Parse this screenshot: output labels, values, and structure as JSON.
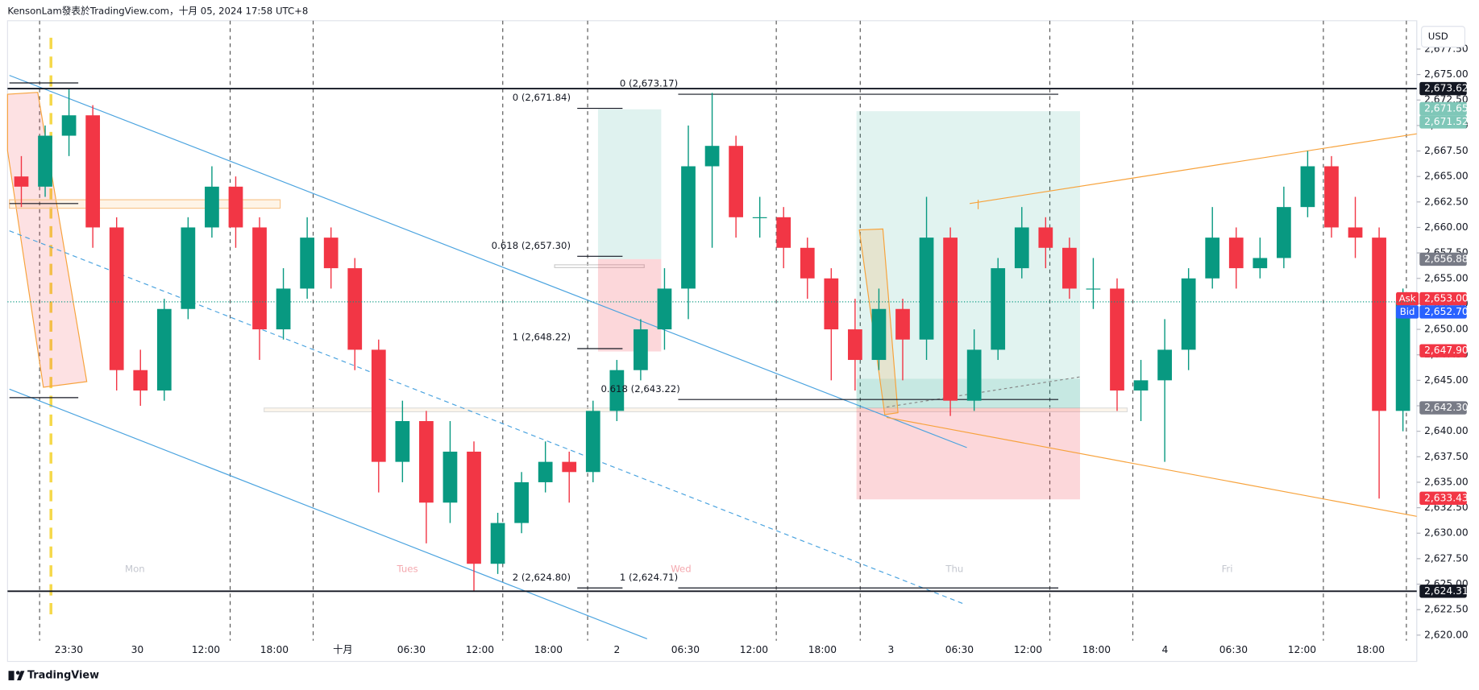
{
  "header": "KensonLam發表於TradingView.com，十月 05, 2024 17:58 UTC+8",
  "footer": "TradingView",
  "currency": "USD",
  "chart_data": {
    "type": "candlestick",
    "up_color": "#089981",
    "down_color": "#f23645",
    "open": [
      2665,
      2664,
      2669,
      2671,
      2660,
      2646,
      2644,
      2652,
      2660,
      2664,
      2660,
      2650,
      2654,
      2659,
      2656,
      2648,
      2637,
      2641,
      2633,
      2638,
      2627,
      2631,
      2635,
      2637,
      2636,
      2642,
      2646,
      2650,
      2654,
      2666,
      2668,
      2661,
      2661,
      2658,
      2655,
      2650,
      2647,
      2652,
      2649,
      2659,
      2643,
      2648,
      2656,
      2660,
      2658,
      2654,
      2654,
      2644,
      2645,
      2648,
      2655,
      2659,
      2656,
      2657,
      2662,
      2666,
      2660,
      2659,
      2642
    ],
    "high": [
      2667,
      2670,
      2673.6,
      2672,
      2661,
      2648,
      2653,
      2661,
      2666,
      2665,
      2661,
      2656,
      2661,
      2660,
      2657,
      2649,
      2643,
      2642,
      2641,
      2639,
      2632,
      2636,
      2639,
      2638,
      2643,
      2647,
      2651,
      2656,
      2670,
      2673.2,
      2669,
      2663,
      2662,
      2659,
      2656,
      2653,
      2654,
      2653,
      2663,
      2660,
      2650,
      2657,
      2662,
      2661,
      2659,
      2657,
      2655,
      2647,
      2651,
      2656,
      2662,
      2660,
      2659,
      2664,
      2667.5,
      2667,
      2663,
      2660,
      2654
    ],
    "low": [
      2662,
      2663,
      2667,
      2658,
      2644,
      2642.5,
      2643,
      2651,
      2659,
      2658,
      2647,
      2649,
      2653,
      2654,
      2646,
      2634,
      2635,
      2629,
      2631,
      2624.3,
      2626,
      2630,
      2634,
      2633,
      2635,
      2641,
      2645,
      2648,
      2651,
      2658,
      2659,
      2659,
      2656,
      2653,
      2645,
      2644,
      2646,
      2645,
      2647,
      2641.5,
      2642,
      2647,
      2655,
      2656,
      2653,
      2652,
      2642,
      2641,
      2637,
      2646,
      2654,
      2654,
      2655,
      2656,
      2661,
      2659,
      2657,
      2633.4,
      2640
    ],
    "close": [
      2664,
      2669,
      2671,
      2660,
      2646,
      2644,
      2652,
      2660,
      2664,
      2660,
      2650,
      2654,
      2659,
      2656,
      2648,
      2637,
      2641,
      2633,
      2638,
      2627,
      2631,
      2635,
      2637,
      2636,
      2642,
      2646,
      2650,
      2654,
      2666,
      2668,
      2661,
      2661,
      2658,
      2655,
      2650,
      2647,
      2652,
      2649,
      2659,
      2643,
      2648,
      2656,
      2660,
      2658,
      2654,
      2654,
      2644,
      2645,
      2648,
      2655,
      2659,
      2656,
      2657,
      2662,
      2666,
      2660,
      2659,
      2642,
      2652.7
    ],
    "ylim": [
      2619.45,
      2680.28
    ],
    "yticks": [
      {
        "value": 2620,
        "label": "2,620.00"
      },
      {
        "value": 2622.5,
        "label": "2,622.50"
      },
      {
        "value": 2625,
        "label": "2,625.00"
      },
      {
        "value": 2627.5,
        "label": "2,627.50"
      },
      {
        "value": 2630,
        "label": "2,630.00"
      },
      {
        "value": 2632.5,
        "label": "2,632.50"
      },
      {
        "value": 2635,
        "label": "2,635.00"
      },
      {
        "value": 2637.5,
        "label": "2,637.50"
      },
      {
        "value": 2640,
        "label": "2,640.00"
      },
      {
        "value": 2642.5,
        "label": "2,642.50"
      },
      {
        "value": 2645,
        "label": "2,645.00"
      },
      {
        "value": 2647.5,
        "label": "2,647.50"
      },
      {
        "value": 2650,
        "label": "2,650.00"
      },
      {
        "value": 2652.5,
        "label": "2,652.50"
      },
      {
        "value": 2655,
        "label": "2,655.00"
      },
      {
        "value": 2657.5,
        "label": "2,657.50"
      },
      {
        "value": 2660,
        "label": "2,660.00"
      },
      {
        "value": 2662.5,
        "label": "2,662.50"
      },
      {
        "value": 2665,
        "label": "2,665.00"
      },
      {
        "value": 2667.5,
        "label": "2,667.50"
      },
      {
        "value": 2670,
        "label": "2,670.00"
      },
      {
        "value": 2672.5,
        "label": "2,672.50"
      },
      {
        "value": 2675,
        "label": "2,675.00"
      },
      {
        "value": 2677.5,
        "label": "2,677.50"
      }
    ],
    "xtick_labels": [
      "23:30",
      "30",
      "12:00",
      "18:00",
      "十月",
      "06:30",
      "12:00",
      "18:00",
      "2",
      "06:30",
      "12:00",
      "18:00",
      "3",
      "06:30",
      "12:00",
      "18:00",
      "4",
      "06:30",
      "12:00",
      "18:00"
    ],
    "price_tags": [
      {
        "value": 2673.62,
        "label": "2,673.62",
        "color": "#131722",
        "line": "solid"
      },
      {
        "value": 2671.65,
        "label": "2,671.65",
        "color": "#7fc7b8"
      },
      {
        "value": 2671.52,
        "label": "2,671.52",
        "color": "#7fc7b8"
      },
      {
        "value": 2656.88,
        "label": "2,656.88",
        "color": "#787b86"
      },
      {
        "value": 2653.0,
        "label": "2,653.00",
        "color": "#f23645",
        "tag": "Ask"
      },
      {
        "value": 2652.7,
        "label": "2,652.70",
        "color": "#2962ff",
        "tag": "Bid",
        "line": "dotted"
      },
      {
        "value": 2647.9,
        "label": "2,647.90",
        "color": "#f23645"
      },
      {
        "value": 2642.3,
        "label": "2,642.30",
        "color": "#787b86"
      },
      {
        "value": 2633.43,
        "label": "2,633.43",
        "color": "#f23645"
      },
      {
        "value": 2624.31,
        "label": "2,624.31",
        "color": "#131722",
        "line": "solid"
      }
    ],
    "day_labels": [
      "Mon",
      "Tues",
      "Wed",
      "Thu",
      "Fri"
    ],
    "fib_labels": [
      "0 (2,671.84)",
      "0.618 (2,657.30)",
      "1 (2,648.22)",
      "2 (2,624.80)",
      "0 (2,673.17)",
      "0.618 (2,643.22)",
      "1 (2,624.71)"
    ]
  }
}
